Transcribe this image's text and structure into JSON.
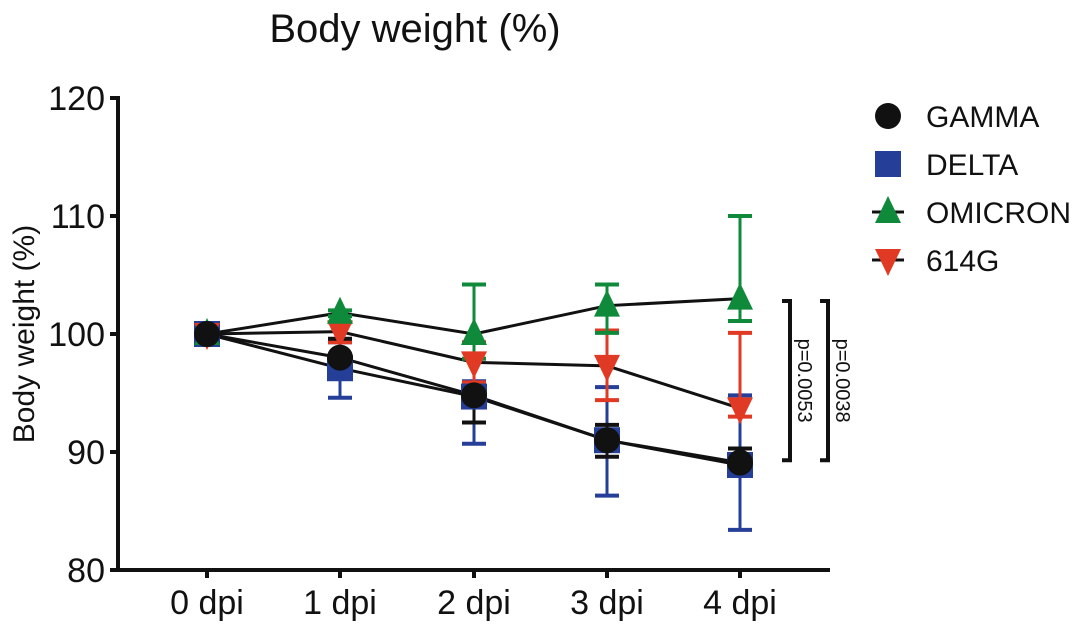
{
  "chart_data": {
    "type": "line",
    "title": "Body weight (%)",
    "xlabel": "",
    "ylabel": "Body weight (%)",
    "ylim": [
      80,
      120
    ],
    "yticks": [
      80,
      90,
      100,
      110,
      120
    ],
    "yticks_labels": [
      "80",
      "90",
      "100",
      "110",
      "120"
    ],
    "categories": [
      "0 dpi",
      "1 dpi",
      "2 dpi",
      "3 dpi",
      "4 dpi"
    ],
    "grid": false,
    "legend": "right",
    "series": [
      {
        "name": "GAMMA",
        "marker": "circle",
        "color": "#111111",
        "values": [
          100,
          98.0,
          94.8,
          91.0,
          89.1
        ],
        "err_low": [
          100,
          96.2,
          92.5,
          89.6,
          88.0
        ],
        "err_high": [
          100,
          99.6,
          95.0,
          92.3,
          90.3
        ]
      },
      {
        "name": "DELTA",
        "marker": "square",
        "color": "#253e98",
        "values": [
          100,
          97.1,
          94.7,
          91.0,
          88.9
        ],
        "err_low": [
          100,
          94.6,
          90.7,
          86.3,
          83.4
        ],
        "err_high": [
          100,
          99.3,
          96.0,
          95.5,
          94.8
        ]
      },
      {
        "name": "OMICRON",
        "marker": "triangle-up",
        "color": "#0e8a3a",
        "values": [
          100,
          101.8,
          100.0,
          102.4,
          103.0
        ],
        "err_low": [
          100,
          101.5,
          97.9,
          100.1,
          101.1
        ],
        "err_high": [
          100,
          102.0,
          104.2,
          104.2,
          110.0
        ]
      },
      {
        "name": "614G",
        "marker": "triangle-down",
        "color": "#e03a24",
        "values": [
          100,
          100.2,
          97.6,
          97.3,
          93.7
        ],
        "err_low": [
          100,
          99.3,
          95.9,
          94.4,
          93.0
        ],
        "err_high": [
          100,
          101.0,
          99.3,
          100.3,
          100.1
        ]
      }
    ],
    "annotations": [
      {
        "text": "p=0.0053",
        "from": 102.8,
        "to": 89.3,
        "rotation": "90deg"
      },
      {
        "text": "p=0.0038",
        "from": 102.8,
        "to": 89.3,
        "rotation": "90deg"
      }
    ]
  }
}
